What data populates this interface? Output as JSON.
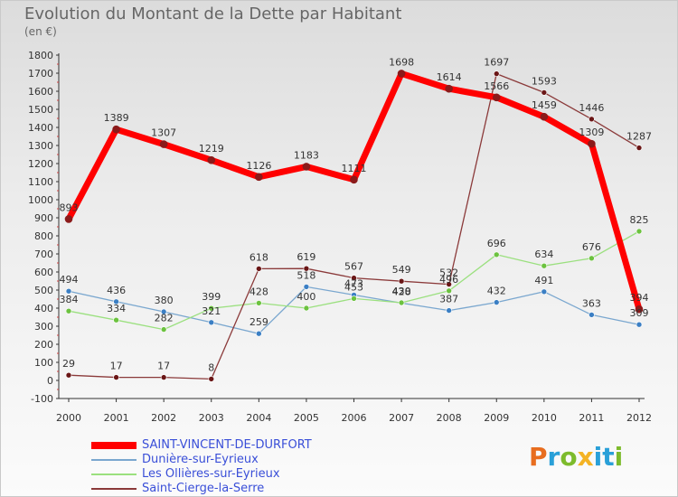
{
  "header": {
    "title": "Evolution du Montant de la Dette par Habitant",
    "subtitle": "(en €)"
  },
  "brand": {
    "text": "Proxiti",
    "colors": [
      "#e86d1f",
      "#2aa0d8",
      "#7dbb2c",
      "#f4b324",
      "#2aa0d8",
      "#2aa0d8",
      "#7dbb2c"
    ]
  },
  "chart_data": {
    "type": "line",
    "title": "Evolution du Montant de la Dette par Habitant",
    "subtitle": "(en €)",
    "xlabel": "",
    "ylabel": "",
    "ylim": [
      -100,
      1800
    ],
    "yticks": [
      -100,
      0,
      100,
      200,
      300,
      400,
      500,
      600,
      700,
      800,
      900,
      1000,
      1100,
      1200,
      1300,
      1400,
      1500,
      1600,
      1700,
      1800
    ],
    "grid": false,
    "legend_position": "bottom-left",
    "categories": [
      "2000",
      "2001",
      "2002",
      "2003",
      "2004",
      "2005",
      "2006",
      "2007",
      "2008",
      "2009",
      "2010",
      "2011",
      "2012"
    ],
    "series": [
      {
        "name": "SAINT-VINCENT-DE-DURFORT",
        "color": "#ff0000",
        "point_color": "#8b1a1a",
        "width": 7,
        "values": [
          893,
          1389,
          1307,
          1219,
          1126,
          1183,
          1111,
          1698,
          1614,
          1566,
          1459,
          1309,
          394
        ]
      },
      {
        "name": "Dunière-sur-Eyrieux",
        "color": "#7aa7cf",
        "point_color": "#3b7fc4",
        "width": 1.3,
        "values": [
          494,
          436,
          380,
          321,
          259,
          518,
          473,
          428,
          387,
          432,
          491,
          363,
          309
        ]
      },
      {
        "name": "Les Ollières-sur-Eyrieux",
        "color": "#9be07f",
        "point_color": "#6cc23f",
        "width": 1.3,
        "values": [
          384,
          334,
          282,
          399,
          428,
          400,
          453,
          430,
          496,
          696,
          634,
          676,
          825
        ]
      },
      {
        "name": "Saint-Cierge-la-Serre",
        "color": "#8b3a3a",
        "point_color": "#6a1616",
        "width": 1.3,
        "values": [
          29,
          17,
          17,
          8,
          618,
          619,
          567,
          549,
          532,
          1697,
          1593,
          1446,
          1287
        ]
      }
    ]
  }
}
